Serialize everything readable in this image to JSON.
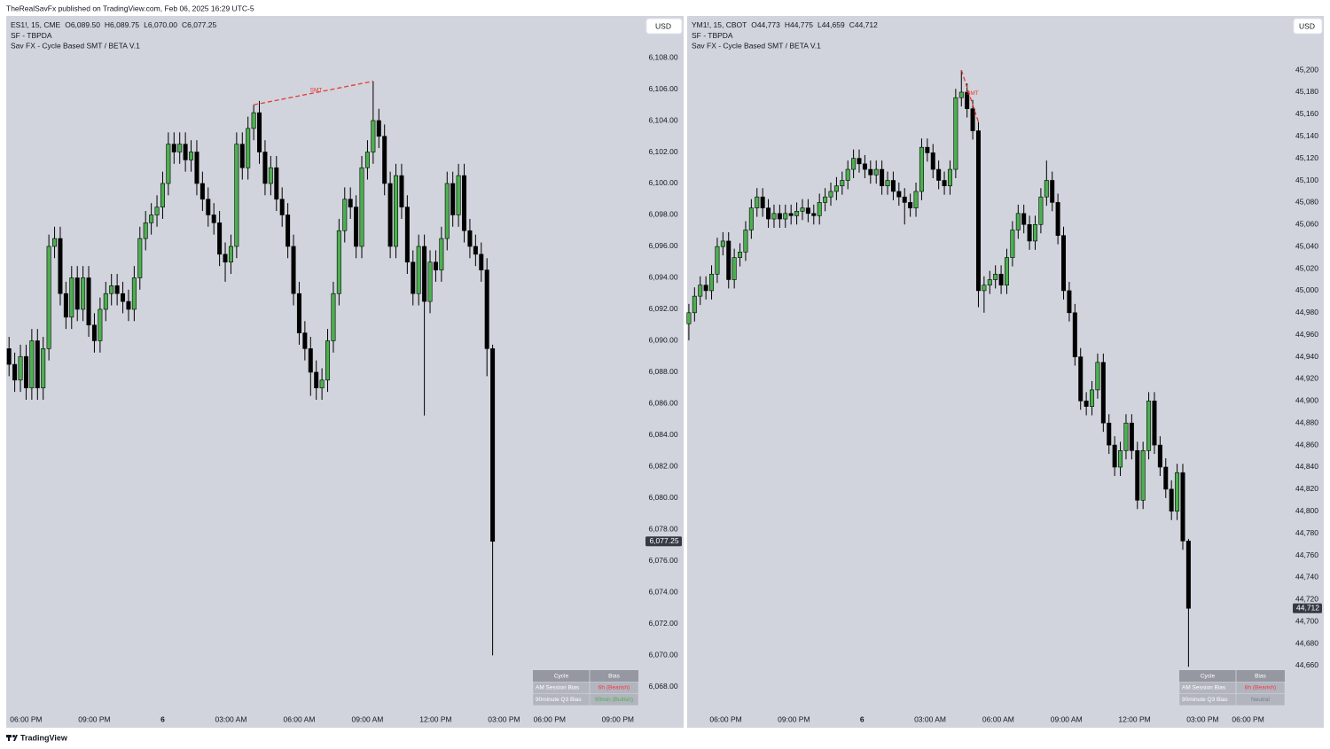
{
  "header": "TheRealSavFx published on TradingView.com, Feb 06, 2025 16:29 UTC-5",
  "footer": "TradingView",
  "chart_data": [
    {
      "type": "candlestick",
      "legend": {
        "symbol": "ES1!, 15, CME",
        "open": "O6,089.50",
        "high": "H6,089.75",
        "low": "L6,070.00",
        "close": "C6,077.25"
      },
      "indicators": [
        "SF - TBPDA",
        "Sav FX - Cycle Based SMT / BETA V.1"
      ],
      "currency": "USD",
      "up_color": "#4caf50",
      "down_color": "#000000",
      "xlim": [
        -0.5,
        111.4
      ],
      "xticks": [
        {
          "value": 3,
          "label": "06:00 PM"
        },
        {
          "value": 15,
          "label": "09:00 PM"
        },
        {
          "value": 27,
          "label": "6"
        },
        {
          "value": 39,
          "label": "03:00 AM"
        },
        {
          "value": 51,
          "label": "06:00 AM"
        },
        {
          "value": 63,
          "label": "09:00 AM"
        },
        {
          "value": 75,
          "label": "12:00 PM"
        },
        {
          "value": 87,
          "label": "03:00 PM"
        },
        {
          "value": 95,
          "label": "06:00 PM"
        },
        {
          "value": 107,
          "label": "09:00 PM"
        }
      ],
      "ylim": [
        6065.4,
        6110.65
      ],
      "yticks": [
        {
          "value": 6068,
          "label": "6,068.00"
        },
        {
          "value": 6070,
          "label": "6,070.00"
        },
        {
          "value": 6072,
          "label": "6,072.00"
        },
        {
          "value": 6074,
          "label": "6,074.00"
        },
        {
          "value": 6076,
          "label": "6,076.00"
        },
        {
          "value": 6078,
          "label": "6,078.00"
        },
        {
          "value": 6080,
          "label": "6,080.00"
        },
        {
          "value": 6082,
          "label": "6,082.00"
        },
        {
          "value": 6084,
          "label": "6,084.00"
        },
        {
          "value": 6086,
          "label": "6,086.00"
        },
        {
          "value": 6088,
          "label": "6,088.00"
        },
        {
          "value": 6090,
          "label": "6,090.00"
        },
        {
          "value": 6092,
          "label": "6,092.00"
        },
        {
          "value": 6094,
          "label": "6,094.00"
        },
        {
          "value": 6096,
          "label": "6,096.00"
        },
        {
          "value": 6098,
          "label": "6,098.00"
        },
        {
          "value": 6100,
          "label": "6,100.00"
        },
        {
          "value": 6102,
          "label": "6,102.00"
        },
        {
          "value": 6104,
          "label": "6,104.00"
        },
        {
          "value": 6106,
          "label": "6,106.00"
        },
        {
          "value": 6108,
          "label": "6,108.00"
        }
      ],
      "last_price": {
        "value": 6077.25,
        "label": "6,077.25"
      },
      "open": [
        6089.5,
        6088.5,
        6087.5,
        6089,
        6087,
        6090,
        6087,
        6089.5,
        6096,
        6096.5,
        6093,
        6091.5,
        6094,
        6092,
        6094,
        6091,
        6090,
        6092,
        6093,
        6093.5,
        6093,
        6092.5,
        6092,
        6094,
        6096.5,
        6097.5,
        6098,
        6098.5,
        6100,
        6102.5,
        6102,
        6102.5,
        6101.5,
        6102,
        6100,
        6099,
        6098,
        6097.5,
        6095.5,
        6095,
        6096,
        6102.5,
        6101,
        6103.5,
        6104.5,
        6102,
        6100,
        6101,
        6099,
        6098,
        6096,
        6093,
        6090.5,
        6089.5,
        6088,
        6087,
        6087.5,
        6090,
        6093,
        6097,
        6099,
        6098.5,
        6096,
        6101,
        6102,
        6104,
        6103,
        6100,
        6096,
        6100.5,
        6098.5,
        6095,
        6093,
        6096,
        6092.5,
        6095,
        6094.5,
        6096.5,
        6100,
        6098,
        6100.5,
        6097,
        6096,
        6095.5,
        6094.5,
        6089.5
      ],
      "high": [
        6090.25,
        6089.25,
        6089.75,
        6089.75,
        6090.75,
        6090.75,
        6090.25,
        6096.75,
        6097.25,
        6097.25,
        6093.75,
        6094.75,
        6094.75,
        6094.75,
        6094.75,
        6091.75,
        6092.75,
        6093.75,
        6094.25,
        6094.25,
        6093.75,
        6093.25,
        6094.75,
        6097.25,
        6098.25,
        6098.75,
        6099.25,
        6100.75,
        6103.25,
        6103.25,
        6103.25,
        6103.25,
        6102.75,
        6102.75,
        6100.75,
        6099.75,
        6098.75,
        6098.25,
        6096.25,
        6096.75,
        6103.25,
        6103.25,
        6104.25,
        6105,
        6105.25,
        6102.75,
        6101.75,
        6101.75,
        6099.75,
        6098.75,
        6096.75,
        6093.75,
        6091.25,
        6090.25,
        6088.75,
        6088.25,
        6090.75,
        6093.75,
        6097.75,
        6099.75,
        6099.75,
        6099.25,
        6101.75,
        6102.75,
        6106.5,
        6104.75,
        6103.75,
        6100.75,
        6101.25,
        6101.25,
        6099.25,
        6095.75,
        6096.75,
        6096.75,
        6095.75,
        6095.75,
        6097.25,
        6100.75,
        6100.75,
        6101.25,
        6101.25,
        6097.75,
        6096.75,
        6096.25,
        6095.25,
        6089.75
      ],
      "low": [
        6087.75,
        6086.75,
        6086.75,
        6086.25,
        6086.25,
        6086.25,
        6086.25,
        6088.75,
        6095.25,
        6092.25,
        6090.75,
        6090.75,
        6091.25,
        6091.25,
        6090.25,
        6089.25,
        6089.25,
        6091.25,
        6092.25,
        6092.25,
        6091.75,
        6091.25,
        6091.25,
        6093.25,
        6095.75,
        6096.75,
        6097.25,
        6097.75,
        6099.25,
        6101.25,
        6101.25,
        6100.75,
        6100.75,
        6099.25,
        6098.25,
        6097.25,
        6096.75,
        6094.75,
        6093.75,
        6094.25,
        6095.25,
        6100.25,
        6100.25,
        6102.75,
        6101.25,
        6099.25,
        6099.25,
        6098.25,
        6097.25,
        6095.25,
        6092.25,
        6089.75,
        6088.75,
        6086.5,
        6086.25,
        6086.25,
        6086.75,
        6089.25,
        6092.25,
        6096.25,
        6097.75,
        6095.25,
        6095.25,
        6100.25,
        6101.25,
        6102.25,
        6099.25,
        6095.25,
        6095.25,
        6097.75,
        6094.25,
        6092.25,
        6092.25,
        6085.25,
        6091.75,
        6093.75,
        6093.75,
        6095.75,
        6097.25,
        6097.25,
        6096.25,
        6095.25,
        6094.75,
        6093.75,
        6087.75,
        6070
      ],
      "close": [
        6088.5,
        6087.5,
        6089,
        6087,
        6090,
        6087,
        6089.5,
        6096,
        6096.5,
        6093,
        6091.5,
        6094,
        6092,
        6094,
        6091,
        6090,
        6092,
        6093,
        6093.5,
        6093,
        6092.5,
        6092,
        6094,
        6096.5,
        6097.5,
        6098,
        6098.5,
        6100,
        6102.5,
        6102,
        6102.5,
        6101.5,
        6102,
        6100,
        6099,
        6098,
        6097.5,
        6095.5,
        6095,
        6096,
        6102.5,
        6101,
        6103.5,
        6104.5,
        6102,
        6100,
        6101,
        6099,
        6098,
        6096,
        6093,
        6090.5,
        6089.5,
        6088,
        6087,
        6087.5,
        6090,
        6093,
        6097,
        6099,
        6098.5,
        6096,
        6101,
        6102,
        6104,
        6103,
        6100,
        6096,
        6100.5,
        6098.5,
        6095,
        6093,
        6096,
        6092.5,
        6095,
        6094.5,
        6096.5,
        6100,
        6098,
        6100.5,
        6097,
        6096,
        6095.5,
        6094.5,
        6089.5,
        6077.25
      ],
      "annotations": [
        {
          "text": "SMT",
          "x": [
            43,
            64
          ],
          "y": [
            6105,
            6106.5
          ],
          "color": "#e53935"
        }
      ],
      "table": {
        "header": [
          "Cycle",
          "Bias"
        ],
        "rows": [
          [
            "AM Session Bias",
            "6h (Bearish)"
          ],
          [
            "90minute Q3 Bias",
            "90min (Bullish)"
          ]
        ],
        "bias_colors": [
          "#f23645",
          "#4caf50"
        ]
      }
    },
    {
      "type": "candlestick",
      "legend": {
        "symbol": "YM1!, 15, CBOT",
        "open": "O44,773",
        "high": "H44,775",
        "low": "L44,659",
        "close": "C44,712"
      },
      "indicators": [
        "SF - TBPDA",
        "Sav FX - Cycle Based SMT / BETA V.1"
      ],
      "currency": "USD",
      "up_color": "#4caf50",
      "down_color": "#000000",
      "xlim": [
        -0.3,
        105.9
      ],
      "xticks": [
        {
          "value": 6.5,
          "label": "06:00 PM"
        },
        {
          "value": 18.5,
          "label": "09:00 PM"
        },
        {
          "value": 30.5,
          "label": "6"
        },
        {
          "value": 42.5,
          "label": "03:00 AM"
        },
        {
          "value": 54.5,
          "label": "06:00 AM"
        },
        {
          "value": 66.5,
          "label": "09:00 AM"
        },
        {
          "value": 78.5,
          "label": "12:00 PM"
        },
        {
          "value": 90.5,
          "label": "03:00 PM"
        },
        {
          "value": 98.5,
          "label": "06:00 PM"
        }
      ],
      "ylim": [
        44603.7,
        45249.1
      ],
      "yticks": [
        {
          "value": 44660,
          "label": "44,660"
        },
        {
          "value": 44680,
          "label": "44,680"
        },
        {
          "value": 44700,
          "label": "44,700"
        },
        {
          "value": 44720,
          "label": "44,720"
        },
        {
          "value": 44740,
          "label": "44,740"
        },
        {
          "value": 44760,
          "label": "44,760"
        },
        {
          "value": 44780,
          "label": "44,780"
        },
        {
          "value": 44800,
          "label": "44,800"
        },
        {
          "value": 44820,
          "label": "44,820"
        },
        {
          "value": 44840,
          "label": "44,840"
        },
        {
          "value": 44860,
          "label": "44,860"
        },
        {
          "value": 44880,
          "label": "44,880"
        },
        {
          "value": 44900,
          "label": "44,900"
        },
        {
          "value": 44920,
          "label": "44,920"
        },
        {
          "value": 44940,
          "label": "44,940"
        },
        {
          "value": 44960,
          "label": "44,960"
        },
        {
          "value": 44980,
          "label": "44,980"
        },
        {
          "value": 45000,
          "label": "45,000"
        },
        {
          "value": 45020,
          "label": "45,020"
        },
        {
          "value": 45040,
          "label": "45,040"
        },
        {
          "value": 45060,
          "label": "45,060"
        },
        {
          "value": 45080,
          "label": "45,080"
        },
        {
          "value": 45100,
          "label": "45,100"
        },
        {
          "value": 45120,
          "label": "45,120"
        },
        {
          "value": 45140,
          "label": "45,140"
        },
        {
          "value": 45160,
          "label": "45,160"
        },
        {
          "value": 45180,
          "label": "45,180"
        },
        {
          "value": 45200,
          "label": "45,200"
        }
      ],
      "last_price": {
        "value": 44712,
        "label": "44,712"
      },
      "open": [
        44970,
        44980,
        44995,
        45005,
        45000,
        45015,
        45040,
        45045,
        45010,
        45030,
        45035,
        45055,
        45075,
        45085,
        45075,
        45065,
        45070,
        45065,
        45070,
        45068,
        45072,
        45075,
        45070,
        45068,
        45080,
        45085,
        45090,
        45095,
        45100,
        45110,
        45120,
        45115,
        45110,
        45105,
        45110,
        45095,
        45100,
        45090,
        45085,
        45080,
        45075,
        45090,
        45130,
        45125,
        45110,
        45100,
        45095,
        45110,
        45175,
        45180,
        45165,
        45145,
        45000,
        45005,
        45010,
        45015,
        45005,
        45030,
        45055,
        45070,
        45060,
        45045,
        45060,
        45085,
        45100,
        45080,
        45050,
        45000,
        44980,
        44940,
        44900,
        44895,
        44910,
        44935,
        44880,
        44860,
        44840,
        44855,
        44880,
        44855,
        44810,
        44855,
        44900,
        44860,
        44840,
        44820,
        44800,
        44835,
        44773
      ],
      "high": [
        44988,
        45003,
        45013,
        45013,
        45023,
        45048,
        45053,
        45053,
        45038,
        45043,
        45063,
        45083,
        45093,
        45093,
        45083,
        45078,
        45078,
        45078,
        45078,
        45080,
        45083,
        45083,
        45078,
        45088,
        45093,
        45098,
        45103,
        45108,
        45118,
        45128,
        45128,
        45123,
        45118,
        45118,
        45118,
        45108,
        45108,
        45098,
        45093,
        45088,
        45098,
        45138,
        45138,
        45133,
        45118,
        45108,
        45118,
        45183,
        45200,
        45188,
        45173,
        45153,
        45013,
        45018,
        45023,
        45023,
        45038,
        45063,
        45078,
        45078,
        45068,
        45068,
        45093,
        45118,
        45108,
        45088,
        45058,
        45008,
        44988,
        44948,
        44908,
        44918,
        44943,
        44943,
        44888,
        44868,
        44863,
        44888,
        44888,
        44863,
        44863,
        44908,
        44908,
        44868,
        44848,
        44828,
        44843,
        44843,
        44775
      ],
      "low": [
        44955,
        44972,
        44987,
        44992,
        44992,
        45007,
        45032,
        45002,
        45002,
        45022,
        45027,
        45047,
        45067,
        45067,
        45057,
        45057,
        45057,
        45057,
        45060,
        45060,
        45064,
        45062,
        45060,
        45060,
        45072,
        45077,
        45082,
        45087,
        45092,
        45102,
        45107,
        45102,
        45097,
        45097,
        45087,
        45087,
        45082,
        45077,
        45060,
        45067,
        45067,
        45082,
        45117,
        45102,
        45092,
        45087,
        45087,
        45102,
        45167,
        45157,
        45137,
        44985,
        44980,
        44997,
        45002,
        44997,
        44997,
        45022,
        45047,
        45052,
        45037,
        45037,
        45052,
        45077,
        45072,
        45042,
        44992,
        44972,
        44932,
        44892,
        44887,
        44887,
        44902,
        44872,
        44852,
        44832,
        44832,
        44847,
        44847,
        44802,
        44802,
        44847,
        44852,
        44832,
        44812,
        44792,
        44792,
        44765,
        44659
      ],
      "close": [
        44980,
        44995,
        45005,
        45000,
        45015,
        45040,
        45045,
        45010,
        45030,
        45035,
        45055,
        45075,
        45085,
        45075,
        45065,
        45070,
        45065,
        45070,
        45068,
        45072,
        45075,
        45070,
        45068,
        45080,
        45085,
        45090,
        45095,
        45100,
        45110,
        45120,
        45115,
        45110,
        45105,
        45110,
        45095,
        45100,
        45090,
        45085,
        45080,
        45075,
        45090,
        45130,
        45125,
        45110,
        45100,
        45095,
        45110,
        45175,
        45180,
        45165,
        45145,
        45000,
        45005,
        45010,
        45015,
        45005,
        45030,
        45055,
        45070,
        45060,
        45045,
        45060,
        45085,
        45100,
        45080,
        45050,
        45000,
        44980,
        44940,
        44900,
        44895,
        44910,
        44935,
        44880,
        44860,
        44840,
        44855,
        44880,
        44855,
        44810,
        44855,
        44900,
        44860,
        44840,
        44820,
        44800,
        44835,
        44773,
        44712
      ],
      "annotations": [
        {
          "text": "SMT",
          "x": [
            48,
            51
          ],
          "y": [
            45200,
            45153
          ],
          "color": "#e53935"
        }
      ],
      "table": {
        "header": [
          "Cycle",
          "Bias"
        ],
        "rows": [
          [
            "AM Session Bias",
            "6h (Bearish)"
          ],
          [
            "90minute Q3 Bias",
            "Neutral"
          ]
        ],
        "bias_colors": [
          "#f23645",
          "#787b86"
        ]
      }
    }
  ]
}
